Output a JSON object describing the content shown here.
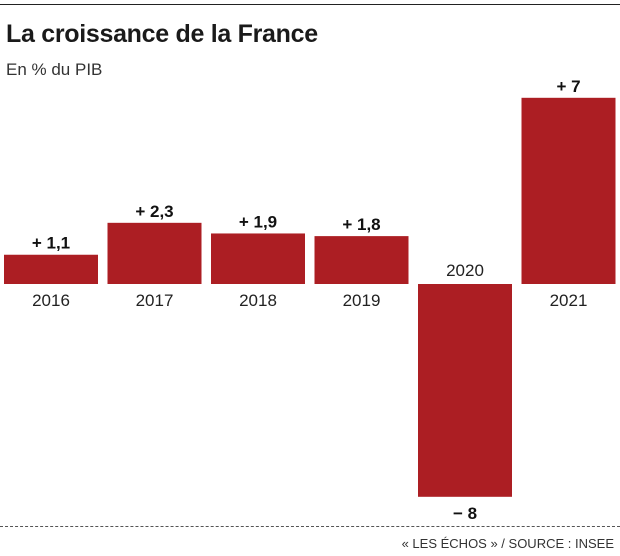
{
  "title": "La croissance de la France",
  "subtitle": "En % du PIB",
  "source": "« LES ÉCHOS » / SOURCE : INSEE",
  "chart_data": {
    "type": "bar",
    "title": "La croissance de la France",
    "subtitle": "En % du PIB",
    "categories": [
      "2016",
      "2017",
      "2018",
      "2019",
      "2020",
      "2021"
    ],
    "values": [
      1.1,
      2.3,
      1.9,
      1.8,
      -8,
      7
    ],
    "value_labels": [
      "+ 1,1",
      "+ 2,3",
      "+ 1,9",
      "+ 1,8",
      "− 8",
      "+ 7"
    ],
    "ylim": [
      -8,
      7
    ],
    "grid": false,
    "legend": "none",
    "bar_color": "#ac1e23"
  }
}
